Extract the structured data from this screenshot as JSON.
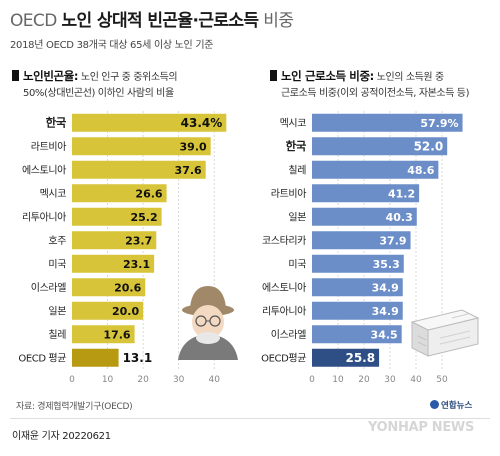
{
  "header": {
    "title_part1": "OECD",
    "title_part2": "노인 상대적 빈곤율·근로소득",
    "title_part3": "비중",
    "subtitle": "2018년 OECD 38개국 대상 65세 이상 노인 기준"
  },
  "left_section": {
    "heading": "노인빈곤율:",
    "desc_line1": "노인 인구 중 중위소득의",
    "desc_line2": "50%(상대빈곤선) 이하인 사람의 비율"
  },
  "right_section": {
    "heading": "노인 근로소득 비중:",
    "desc_line1": "노인의 소득원 중",
    "desc_line2": "근로소득 비중(이외 공적이전소득, 자본소득 등)"
  },
  "chart_data": [
    {
      "type": "bar",
      "orientation": "horizontal",
      "title": "노인빈곤율",
      "categories": [
        "한국",
        "라트비아",
        "에스토니아",
        "멕시코",
        "리투아니아",
        "호주",
        "미국",
        "이스라엘",
        "일본",
        "칠레",
        "OECD 평균"
      ],
      "values": [
        43.4,
        39.0,
        37.6,
        26.6,
        25.2,
        23.7,
        23.1,
        20.6,
        20.0,
        17.6,
        13.1
      ],
      "value_labels": [
        "43.4%",
        "39.0",
        "37.6",
        "26.6",
        "25.2",
        "23.7",
        "23.1",
        "20.6",
        "20.0",
        "17.6",
        "13.1"
      ],
      "highlight": [
        "한국",
        "OECD 평균"
      ],
      "xlim": [
        0,
        45
      ],
      "x_ticks": [
        0,
        10,
        20,
        30,
        40
      ],
      "colors": {
        "bar": "#d8c438",
        "average_bar": "#b89a12",
        "label": "#111111",
        "tick": "#888888"
      }
    },
    {
      "type": "bar",
      "orientation": "horizontal",
      "title": "노인 근로소득 비중",
      "categories": [
        "멕시코",
        "한국",
        "칠레",
        "라트비아",
        "일본",
        "코스타리카",
        "미국",
        "에스토니아",
        "리투아니아",
        "이스라엘",
        "OECD평균"
      ],
      "values": [
        57.9,
        52.0,
        48.6,
        41.2,
        40.3,
        37.9,
        35.3,
        34.9,
        34.9,
        34.5,
        25.8
      ],
      "value_labels": [
        "57.9%",
        "52.0",
        "48.6",
        "41.2",
        "40.3",
        "37.9",
        "35.3",
        "34.9",
        "34.9",
        "34.5",
        "25.8"
      ],
      "highlight": [
        "한국",
        "OECD평균"
      ],
      "xlim": [
        0,
        60
      ],
      "x_ticks": [
        0,
        10,
        20,
        30,
        40,
        50
      ],
      "colors": {
        "bar": "#6b8ec9",
        "average_bar": "#2e4f86",
        "label": "#ffffff",
        "tick": "#888888"
      }
    }
  ],
  "footer": {
    "source": "자료: 경제협력개발기구(OECD)",
    "byline": "이재윤 기자  20220621",
    "agency_logo": "연합뉴스",
    "watermark": "YONHAP NEWS"
  }
}
